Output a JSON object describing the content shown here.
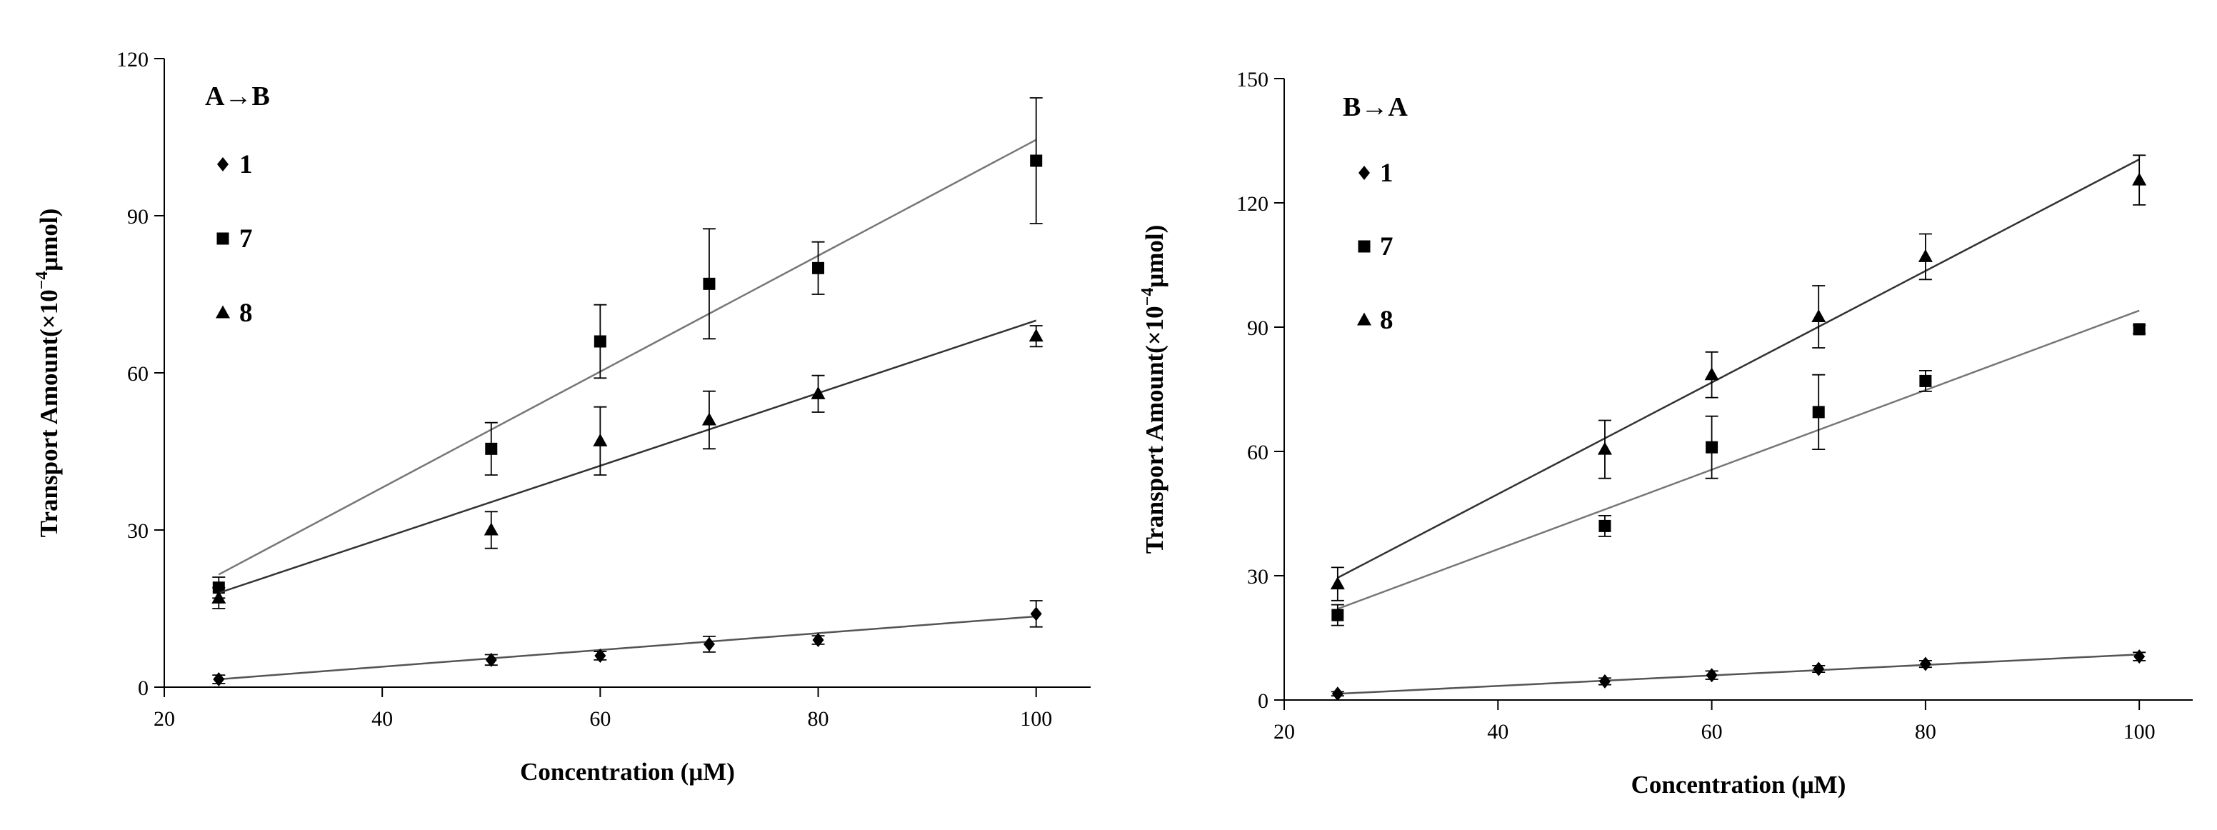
{
  "chart_data": [
    {
      "type": "scatter",
      "title": "A→B",
      "xlabel": "Concentration (μM)",
      "ylabel_prefix": "Transport Amount(×10",
      "ylabel_exponent": "−4",
      "ylabel_suffix": "μmol)",
      "xlim": [
        20,
        105
      ],
      "ylim": [
        0,
        120
      ],
      "xticks": [
        20,
        40,
        60,
        80,
        100
      ],
      "yticks": [
        0,
        30,
        60,
        90,
        120
      ],
      "series": [
        {
          "name": "1",
          "marker": "diamond",
          "x": [
            25,
            50,
            60,
            70,
            80,
            100
          ],
          "y": [
            1.5,
            5.2,
            6.0,
            8.2,
            9.0,
            14.0
          ],
          "err": [
            0.8,
            1.0,
            0.8,
            1.5,
            0.8,
            2.5
          ],
          "fit": [
            [
              25,
              1.5
            ],
            [
              100,
              13.5
            ]
          ],
          "line_color": "#555555"
        },
        {
          "name": "7",
          "marker": "square",
          "x": [
            25,
            50,
            60,
            70,
            80,
            100
          ],
          "y": [
            19.0,
            45.5,
            66.0,
            77.0,
            80.0,
            100.5
          ],
          "err": [
            2.0,
            5.0,
            7.0,
            10.5,
            5.0,
            12.0
          ],
          "fit": [
            [
              25,
              21.5
            ],
            [
              100,
              104.5
            ]
          ],
          "line_color": "#777777"
        },
        {
          "name": "8",
          "marker": "triangle",
          "x": [
            25,
            50,
            60,
            70,
            80,
            100
          ],
          "y": [
            17.0,
            30.0,
            47.0,
            51.0,
            56.0,
            67.0
          ],
          "err": [
            2.0,
            3.5,
            6.5,
            5.5,
            3.5,
            2.0
          ],
          "fit": [
            [
              25,
              18.0
            ],
            [
              100,
              70.0
            ]
          ],
          "line_color": "#333333"
        }
      ]
    },
    {
      "type": "scatter",
      "title": "B→A",
      "xlabel": "Concentration (μM)",
      "ylabel_prefix": "Transport Amount(×10",
      "ylabel_exponent": "−4",
      "ylabel_suffix": "μmol)",
      "xlim": [
        20,
        105
      ],
      "ylim": [
        0,
        150
      ],
      "xticks": [
        20,
        40,
        60,
        80,
        100
      ],
      "yticks": [
        0,
        30,
        60,
        90,
        120,
        150
      ],
      "series": [
        {
          "name": "1",
          "marker": "diamond",
          "x": [
            25,
            50,
            60,
            70,
            80,
            100
          ],
          "y": [
            1.5,
            4.5,
            6.0,
            7.5,
            8.7,
            10.5
          ],
          "err": [
            0.5,
            0.8,
            1.0,
            0.8,
            0.8,
            1.0
          ],
          "fit": [
            [
              25,
              1.5
            ],
            [
              100,
              11.0
            ]
          ],
          "line_color": "#555555"
        },
        {
          "name": "7",
          "marker": "square",
          "x": [
            25,
            50,
            60,
            70,
            80,
            100
          ],
          "y": [
            20.5,
            42.0,
            61.0,
            69.5,
            77.0,
            89.5
          ],
          "err": [
            2.5,
            2.5,
            7.5,
            9.0,
            2.5,
            1.0
          ],
          "fit": [
            [
              25,
              22.0
            ],
            [
              100,
              94.0
            ]
          ],
          "line_color": "#777777"
        },
        {
          "name": "8",
          "marker": "triangle",
          "x": [
            25,
            50,
            60,
            70,
            80,
            100
          ],
          "y": [
            28.0,
            60.5,
            78.5,
            92.5,
            107.0,
            125.5
          ],
          "err": [
            4.0,
            7.0,
            5.5,
            7.5,
            5.5,
            6.0
          ],
          "fit": [
            [
              25,
              29.5
            ],
            [
              100,
              130.5
            ]
          ],
          "line_color": "#333333"
        }
      ]
    }
  ]
}
